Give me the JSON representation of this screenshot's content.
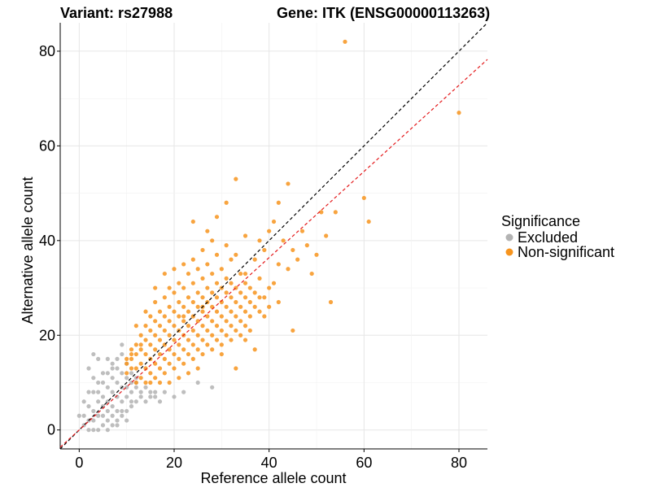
{
  "chart_data": {
    "type": "scatter",
    "title_left": "Variant: rs27988",
    "title_right": "Gene: ITK (ENSG00000113263)",
    "xlabel": "Reference allele count",
    "ylabel": "Alternative allele count",
    "xlim": [
      -4,
      86
    ],
    "ylim": [
      -4,
      86
    ],
    "xticks": [
      0,
      20,
      40,
      60,
      80
    ],
    "yticks": [
      0,
      20,
      40,
      60,
      80
    ],
    "tick_labels_x": [
      "0",
      "20",
      "40",
      "60",
      "80"
    ],
    "tick_labels_y": [
      "0",
      "20",
      "40",
      "60",
      "80"
    ],
    "grid": true,
    "legend": {
      "title": "Significance",
      "position": "right",
      "entries": [
        {
          "label": "Excluded",
          "color": "#b3b3b3"
        },
        {
          "label": "Non-significant",
          "color": "#f7941d"
        }
      ]
    },
    "reference_lines": [
      {
        "name": "identity",
        "slope": 1.0,
        "intercept": 0,
        "color": "#000000",
        "style": "dashed"
      },
      {
        "name": "fit",
        "slope": 0.91,
        "intercept": 0,
        "color": "#e41a1c",
        "style": "dashed"
      }
    ],
    "series": [
      {
        "name": "Excluded",
        "color": "#b3b3b3",
        "points": [
          [
            0,
            3
          ],
          [
            1,
            3
          ],
          [
            1,
            1
          ],
          [
            2,
            0
          ],
          [
            2,
            2
          ],
          [
            2,
            5
          ],
          [
            3,
            0
          ],
          [
            3,
            2
          ],
          [
            3,
            4
          ],
          [
            3,
            8
          ],
          [
            2,
            13
          ],
          [
            3,
            16
          ],
          [
            4,
            0
          ],
          [
            4,
            3
          ],
          [
            4,
            6
          ],
          [
            4,
            8
          ],
          [
            4,
            15
          ],
          [
            5,
            1
          ],
          [
            5,
            3
          ],
          [
            5,
            5
          ],
          [
            5,
            7
          ],
          [
            5,
            10
          ],
          [
            6,
            0
          ],
          [
            6,
            2
          ],
          [
            6,
            4
          ],
          [
            6,
            6
          ],
          [
            6,
            9
          ],
          [
            6,
            12
          ],
          [
            7,
            1
          ],
          [
            7,
            3
          ],
          [
            7,
            5
          ],
          [
            7,
            8
          ],
          [
            7,
            11
          ],
          [
            7,
            14
          ],
          [
            8,
            2
          ],
          [
            8,
            4
          ],
          [
            8,
            7
          ],
          [
            8,
            10
          ],
          [
            8,
            13
          ],
          [
            8,
            15
          ],
          [
            9,
            3
          ],
          [
            9,
            6
          ],
          [
            9,
            9
          ],
          [
            9,
            12
          ],
          [
            9,
            16
          ],
          [
            9,
            18
          ],
          [
            10,
            4
          ],
          [
            10,
            7
          ],
          [
            10,
            11
          ],
          [
            10,
            14
          ],
          [
            11,
            5
          ],
          [
            11,
            8
          ],
          [
            11,
            12
          ],
          [
            12,
            6
          ],
          [
            12,
            9
          ],
          [
            12,
            10
          ],
          [
            13,
            7
          ],
          [
            13,
            8
          ],
          [
            14,
            6
          ],
          [
            14,
            9
          ],
          [
            15,
            7
          ],
          [
            15,
            8
          ],
          [
            16,
            7
          ],
          [
            16,
            8
          ],
          [
            17,
            6
          ],
          [
            18,
            8
          ],
          [
            20,
            7
          ],
          [
            22,
            8
          ],
          [
            25,
            10
          ],
          [
            28,
            9
          ],
          [
            1,
            6
          ],
          [
            2,
            8
          ],
          [
            3,
            11
          ],
          [
            5,
            12
          ],
          [
            6,
            15
          ],
          [
            10,
            9
          ],
          [
            11,
            10
          ],
          [
            12,
            11
          ],
          [
            4,
            10
          ],
          [
            7,
            13
          ],
          [
            9,
            4
          ],
          [
            11,
            6
          ],
          [
            8,
            1
          ],
          [
            10,
            2
          ]
        ]
      },
      {
        "name": "Non-significant",
        "color": "#f7941d",
        "points": [
          [
            10,
            12
          ],
          [
            10,
            14
          ],
          [
            10,
            15
          ],
          [
            11,
            13
          ],
          [
            11,
            15
          ],
          [
            11,
            17
          ],
          [
            12,
            10
          ],
          [
            12,
            13
          ],
          [
            12,
            16
          ],
          [
            12,
            18
          ],
          [
            13,
            11
          ],
          [
            13,
            14
          ],
          [
            13,
            17
          ],
          [
            13,
            20
          ],
          [
            14,
            10
          ],
          [
            14,
            13
          ],
          [
            14,
            16
          ],
          [
            14,
            19
          ],
          [
            14,
            22
          ],
          [
            15,
            12
          ],
          [
            15,
            15
          ],
          [
            15,
            18
          ],
          [
            15,
            21
          ],
          [
            15,
            24
          ],
          [
            16,
            11
          ],
          [
            16,
            14
          ],
          [
            16,
            17
          ],
          [
            16,
            20
          ],
          [
            16,
            23
          ],
          [
            16,
            27
          ],
          [
            17,
            13
          ],
          [
            17,
            16
          ],
          [
            17,
            19
          ],
          [
            17,
            22
          ],
          [
            17,
            25
          ],
          [
            18,
            12
          ],
          [
            18,
            15
          ],
          [
            18,
            18
          ],
          [
            18,
            21
          ],
          [
            18,
            24
          ],
          [
            18,
            28
          ],
          [
            19,
            14
          ],
          [
            19,
            17
          ],
          [
            19,
            20
          ],
          [
            19,
            23
          ],
          [
            19,
            26
          ],
          [
            19,
            30
          ],
          [
            20,
            13
          ],
          [
            20,
            16
          ],
          [
            20,
            19
          ],
          [
            20,
            22
          ],
          [
            20,
            25
          ],
          [
            20,
            29
          ],
          [
            20,
            34
          ],
          [
            21,
            15
          ],
          [
            21,
            18
          ],
          [
            21,
            21
          ],
          [
            21,
            24
          ],
          [
            21,
            27
          ],
          [
            21,
            31
          ],
          [
            22,
            14
          ],
          [
            22,
            17
          ],
          [
            22,
            20
          ],
          [
            22,
            23
          ],
          [
            22,
            26
          ],
          [
            22,
            30
          ],
          [
            22,
            35
          ],
          [
            23,
            16
          ],
          [
            23,
            19
          ],
          [
            23,
            22
          ],
          [
            23,
            25
          ],
          [
            23,
            28
          ],
          [
            23,
            33
          ],
          [
            24,
            15
          ],
          [
            24,
            18
          ],
          [
            24,
            21
          ],
          [
            24,
            24
          ],
          [
            24,
            27
          ],
          [
            24,
            31
          ],
          [
            24,
            36
          ],
          [
            25,
            17
          ],
          [
            25,
            20
          ],
          [
            25,
            23
          ],
          [
            25,
            26
          ],
          [
            25,
            29
          ],
          [
            25,
            34
          ],
          [
            26,
            16
          ],
          [
            26,
            19
          ],
          [
            26,
            22
          ],
          [
            26,
            25
          ],
          [
            26,
            28
          ],
          [
            26,
            32
          ],
          [
            26,
            38
          ],
          [
            27,
            18
          ],
          [
            27,
            21
          ],
          [
            27,
            24
          ],
          [
            27,
            27
          ],
          [
            27,
            30
          ],
          [
            27,
            35
          ],
          [
            28,
            17
          ],
          [
            28,
            20
          ],
          [
            28,
            23
          ],
          [
            28,
            26
          ],
          [
            28,
            29
          ],
          [
            28,
            33
          ],
          [
            28,
            40
          ],
          [
            29,
            19
          ],
          [
            29,
            22
          ],
          [
            29,
            25
          ],
          [
            29,
            28
          ],
          [
            29,
            31
          ],
          [
            29,
            37
          ],
          [
            30,
            18
          ],
          [
            30,
            21
          ],
          [
            30,
            24
          ],
          [
            30,
            27
          ],
          [
            30,
            30
          ],
          [
            30,
            34
          ],
          [
            31,
            20
          ],
          [
            31,
            23
          ],
          [
            31,
            26
          ],
          [
            31,
            29
          ],
          [
            31,
            32
          ],
          [
            31,
            39
          ],
          [
            32,
            19
          ],
          [
            32,
            22
          ],
          [
            32,
            25
          ],
          [
            32,
            28
          ],
          [
            32,
            31
          ],
          [
            32,
            36
          ],
          [
            33,
            13
          ],
          [
            33,
            21
          ],
          [
            33,
            24
          ],
          [
            33,
            27
          ],
          [
            33,
            30
          ],
          [
            33,
            53
          ],
          [
            34,
            20
          ],
          [
            34,
            23
          ],
          [
            34,
            26
          ],
          [
            34,
            29
          ],
          [
            34,
            33
          ],
          [
            35,
            22
          ],
          [
            35,
            25
          ],
          [
            35,
            28
          ],
          [
            35,
            31
          ],
          [
            35,
            41
          ],
          [
            36,
            21
          ],
          [
            36,
            24
          ],
          [
            36,
            27
          ],
          [
            36,
            30
          ],
          [
            37,
            17
          ],
          [
            37,
            26
          ],
          [
            37,
            29
          ],
          [
            37,
            36
          ],
          [
            38,
            25
          ],
          [
            38,
            28
          ],
          [
            38,
            32
          ],
          [
            39,
            24
          ],
          [
            39,
            28
          ],
          [
            39,
            38
          ],
          [
            40,
            26
          ],
          [
            40,
            30
          ],
          [
            40,
            42
          ],
          [
            41,
            31
          ],
          [
            41,
            44
          ],
          [
            42,
            27
          ],
          [
            42,
            35
          ],
          [
            43,
            40
          ],
          [
            44,
            34
          ],
          [
            44,
            52
          ],
          [
            45,
            21
          ],
          [
            45,
            38
          ],
          [
            46,
            36
          ],
          [
            47,
            42
          ],
          [
            48,
            39
          ],
          [
            49,
            33
          ],
          [
            50,
            37
          ],
          [
            51,
            46
          ],
          [
            52,
            41
          ],
          [
            53,
            27
          ],
          [
            54,
            46
          ],
          [
            56,
            82
          ],
          [
            60,
            49
          ],
          [
            61,
            44
          ],
          [
            80,
            67
          ],
          [
            22,
            24
          ],
          [
            26,
            26
          ],
          [
            29,
            45
          ],
          [
            24,
            44
          ],
          [
            27,
            42
          ],
          [
            31,
            48
          ],
          [
            33,
            37
          ],
          [
            35,
            33
          ],
          [
            38,
            40
          ],
          [
            42,
            48
          ],
          [
            19,
            10
          ],
          [
            21,
            11
          ],
          [
            23,
            12
          ],
          [
            25,
            13
          ],
          [
            17,
            10
          ],
          [
            15,
            10
          ],
          [
            30,
            16
          ],
          [
            35,
            19
          ],
          [
            14,
            25
          ],
          [
            12,
            22
          ],
          [
            16,
            30
          ],
          [
            18,
            33
          ],
          [
            13,
            18
          ],
          [
            11,
            16
          ]
        ]
      }
    ]
  }
}
